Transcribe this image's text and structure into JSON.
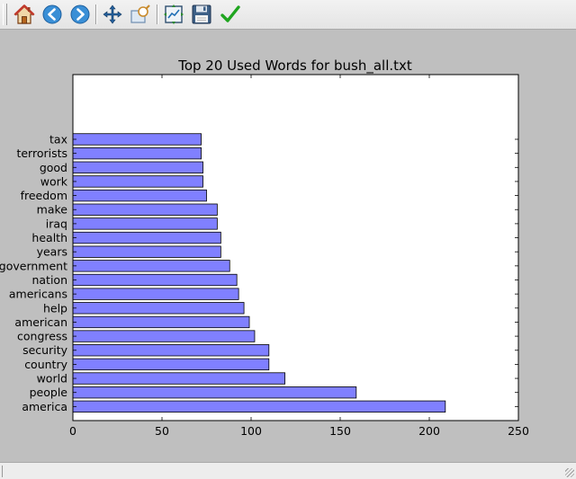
{
  "toolbar": {
    "buttons": [
      {
        "name": "home-button",
        "icon": "home-icon"
      },
      {
        "name": "back-button",
        "icon": "back-arrow-icon"
      },
      {
        "name": "forward-button",
        "icon": "forward-arrow-icon"
      },
      {
        "name": "pan-button",
        "icon": "move-arrows-icon"
      },
      {
        "name": "zoom-button",
        "icon": "zoom-rectangle-icon"
      },
      {
        "name": "subplots-button",
        "icon": "subplots-config-icon"
      },
      {
        "name": "save-button",
        "icon": "floppy-disk-icon"
      },
      {
        "name": "edit-axes-button",
        "icon": "checkmark-icon"
      }
    ]
  },
  "status": {
    "text": ""
  },
  "colors": {
    "bar_fill": "#8080ff",
    "bar_edge": "#000000",
    "figure_bg": "#bfbfbf",
    "axes_bg": "#ffffff"
  },
  "chart_data": {
    "type": "bar",
    "orientation": "horizontal",
    "title": "Top 20 Used Words for bush_all.txt",
    "xlabel": "",
    "ylabel": "",
    "xlim": [
      0,
      250
    ],
    "xticks": [
      "0",
      "50",
      "100",
      "150",
      "200",
      "250"
    ],
    "categories": [
      "america",
      "people",
      "world",
      "country",
      "security",
      "congress",
      "american",
      "help",
      "americans",
      "nation",
      "government",
      "years",
      "health",
      "iraq",
      "make",
      "freedom",
      "work",
      "good",
      "terrorists",
      "tax"
    ],
    "values": [
      209,
      159,
      119,
      110,
      110,
      102,
      99,
      96,
      93,
      92,
      88,
      83,
      83,
      81,
      81,
      75,
      73,
      73,
      72,
      72
    ],
    "grid": false,
    "legend": "none"
  }
}
